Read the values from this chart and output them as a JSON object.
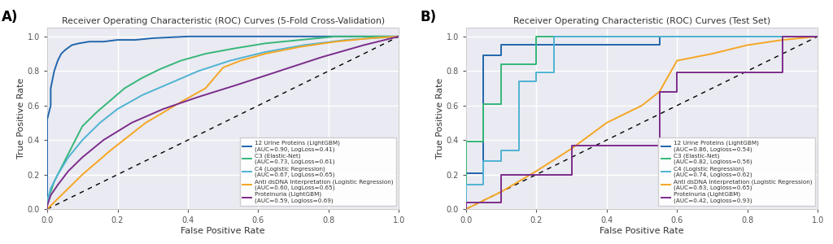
{
  "panel_A": {
    "title": "Receiver Operating Characteristic (ROC) Curves (5-Fold Cross-Validation)",
    "curves": [
      {
        "label": "12 Urine Proteins (LightGBM)\n(AUC=0.90, LogLoss=0.41)",
        "color": "#2166ac",
        "fpr": [
          0.0,
          0.0,
          0.0,
          0.0,
          0.01,
          0.01,
          0.02,
          0.03,
          0.04,
          0.05,
          0.07,
          0.09,
          0.12,
          0.16,
          0.2,
          0.25,
          0.3,
          0.4,
          0.5,
          0.6,
          0.7,
          0.8,
          0.9,
          1.0
        ],
        "tpr": [
          0.0,
          0.1,
          0.2,
          0.52,
          0.6,
          0.7,
          0.8,
          0.86,
          0.9,
          0.92,
          0.95,
          0.96,
          0.97,
          0.97,
          0.98,
          0.98,
          0.99,
          1.0,
          1.0,
          1.0,
          1.0,
          1.0,
          1.0,
          1.0
        ]
      },
      {
        "label": "C3 (Elastic-Net)\n(AUC=0.73, LogLoss=0.61)",
        "color": "#35b779",
        "fpr": [
          0.0,
          0.0,
          0.01,
          0.02,
          0.04,
          0.06,
          0.08,
          0.1,
          0.14,
          0.18,
          0.22,
          0.27,
          0.32,
          0.38,
          0.45,
          0.53,
          0.62,
          0.72,
          0.82,
          1.0
        ],
        "tpr": [
          0.0,
          0.06,
          0.1,
          0.16,
          0.24,
          0.32,
          0.4,
          0.48,
          0.56,
          0.63,
          0.7,
          0.76,
          0.81,
          0.86,
          0.9,
          0.93,
          0.96,
          0.98,
          1.0,
          1.0
        ]
      },
      {
        "label": "C4 (Logistic Regression)\n(AUC=0.67, LogLoss=0.65)",
        "color": "#4eb3d3",
        "fpr": [
          0.0,
          0.0,
          0.01,
          0.03,
          0.06,
          0.1,
          0.15,
          0.2,
          0.27,
          0.35,
          0.43,
          0.52,
          0.62,
          0.73,
          0.85,
          1.0
        ],
        "tpr": [
          0.0,
          0.04,
          0.12,
          0.2,
          0.3,
          0.4,
          0.5,
          0.58,
          0.66,
          0.73,
          0.8,
          0.86,
          0.91,
          0.95,
          0.98,
          1.0
        ]
      },
      {
        "label": "Anti dsDNA Interpretation (Logistic Regression)\n(AUC=0.60, LogLoss=0.65)",
        "color": "#f5a623",
        "fpr": [
          0.0,
          0.0,
          0.05,
          0.1,
          0.18,
          0.28,
          0.38,
          0.45,
          0.5,
          0.55,
          0.62,
          0.72,
          0.82,
          0.92,
          1.0
        ],
        "tpr": [
          0.0,
          0.0,
          0.1,
          0.2,
          0.34,
          0.5,
          0.62,
          0.7,
          0.82,
          0.86,
          0.9,
          0.94,
          0.97,
          0.99,
          1.0
        ]
      },
      {
        "label": "Proteinuria (LightGBM)\n(AUC=0.59, Logloss=0.69)",
        "color": "#7b2d8b",
        "fpr": [
          0.0,
          0.0,
          0.01,
          0.03,
          0.06,
          0.1,
          0.16,
          0.24,
          0.33,
          0.43,
          0.54,
          0.66,
          0.78,
          0.9,
          1.0
        ],
        "tpr": [
          0.0,
          0.02,
          0.08,
          0.14,
          0.22,
          0.3,
          0.4,
          0.5,
          0.58,
          0.65,
          0.72,
          0.8,
          0.88,
          0.95,
          1.0
        ]
      }
    ]
  },
  "panel_B": {
    "title": "Receiver Operating Characteristic (ROC) Curves (Test Set)",
    "curves": [
      {
        "label": "12 Urine Proteins (LightGBM)\n(AUC=0.86, Logloss=0.54)",
        "color": "#2166ac",
        "fpr": [
          0.0,
          0.0,
          0.05,
          0.05,
          0.1,
          0.1,
          0.55,
          0.55,
          1.0
        ],
        "tpr": [
          0.0,
          0.21,
          0.21,
          0.89,
          0.89,
          0.95,
          0.95,
          1.0,
          1.0
        ]
      },
      {
        "label": "C3 (Elastic-Net)\n(AUC=0.82, Logloss=0.56)",
        "color": "#35b779",
        "fpr": [
          0.0,
          0.0,
          0.05,
          0.05,
          0.1,
          0.1,
          0.2,
          0.2,
          0.3,
          0.3,
          0.55,
          0.55,
          1.0
        ],
        "tpr": [
          0.0,
          0.39,
          0.39,
          0.61,
          0.61,
          0.84,
          0.84,
          1.0,
          1.0,
          1.0,
          1.0,
          1.0,
          1.0
        ]
      },
      {
        "label": "C4 (Logistic Regression)\n(AUC=0.74, Logloss=0.62)",
        "color": "#4eb3d3",
        "fpr": [
          0.0,
          0.0,
          0.05,
          0.05,
          0.1,
          0.1,
          0.15,
          0.15,
          0.2,
          0.2,
          0.25,
          0.25,
          0.55,
          0.55,
          1.0
        ],
        "tpr": [
          0.0,
          0.14,
          0.14,
          0.28,
          0.28,
          0.34,
          0.34,
          0.74,
          0.74,
          0.79,
          0.79,
          1.0,
          1.0,
          1.0,
          1.0
        ]
      },
      {
        "label": "Anti dsDNA Interpretation (Logistic Regression)\n(AUC=0.63, Logloss=0.65)",
        "color": "#f5a623",
        "fpr": [
          0.0,
          0.1,
          0.2,
          0.3,
          0.4,
          0.5,
          0.55,
          0.6,
          0.7,
          0.8,
          0.9,
          1.0
        ],
        "tpr": [
          0.0,
          0.1,
          0.22,
          0.35,
          0.5,
          0.6,
          0.68,
          0.86,
          0.9,
          0.95,
          0.98,
          1.0
        ]
      },
      {
        "label": "Proteinuria (LightGBM)\n(AUC=0.42, Logloss=0.93)",
        "color": "#7b2d8b",
        "fpr": [
          0.0,
          0.0,
          0.1,
          0.1,
          0.3,
          0.3,
          0.55,
          0.55,
          0.6,
          0.6,
          0.9,
          0.9,
          1.0
        ],
        "tpr": [
          0.0,
          0.04,
          0.04,
          0.2,
          0.2,
          0.37,
          0.37,
          0.68,
          0.68,
          0.79,
          0.79,
          1.0,
          1.0
        ]
      }
    ]
  },
  "xlabel": "False Positive Rate",
  "ylabel": "True Positive Rate",
  "xlim": [
    0.0,
    1.0
  ],
  "ylim": [
    0.0,
    1.05
  ],
  "background_color": "#eaeaf2",
  "grid_color": "white",
  "tick_color": "#555555",
  "spine_color": "#cccccc"
}
